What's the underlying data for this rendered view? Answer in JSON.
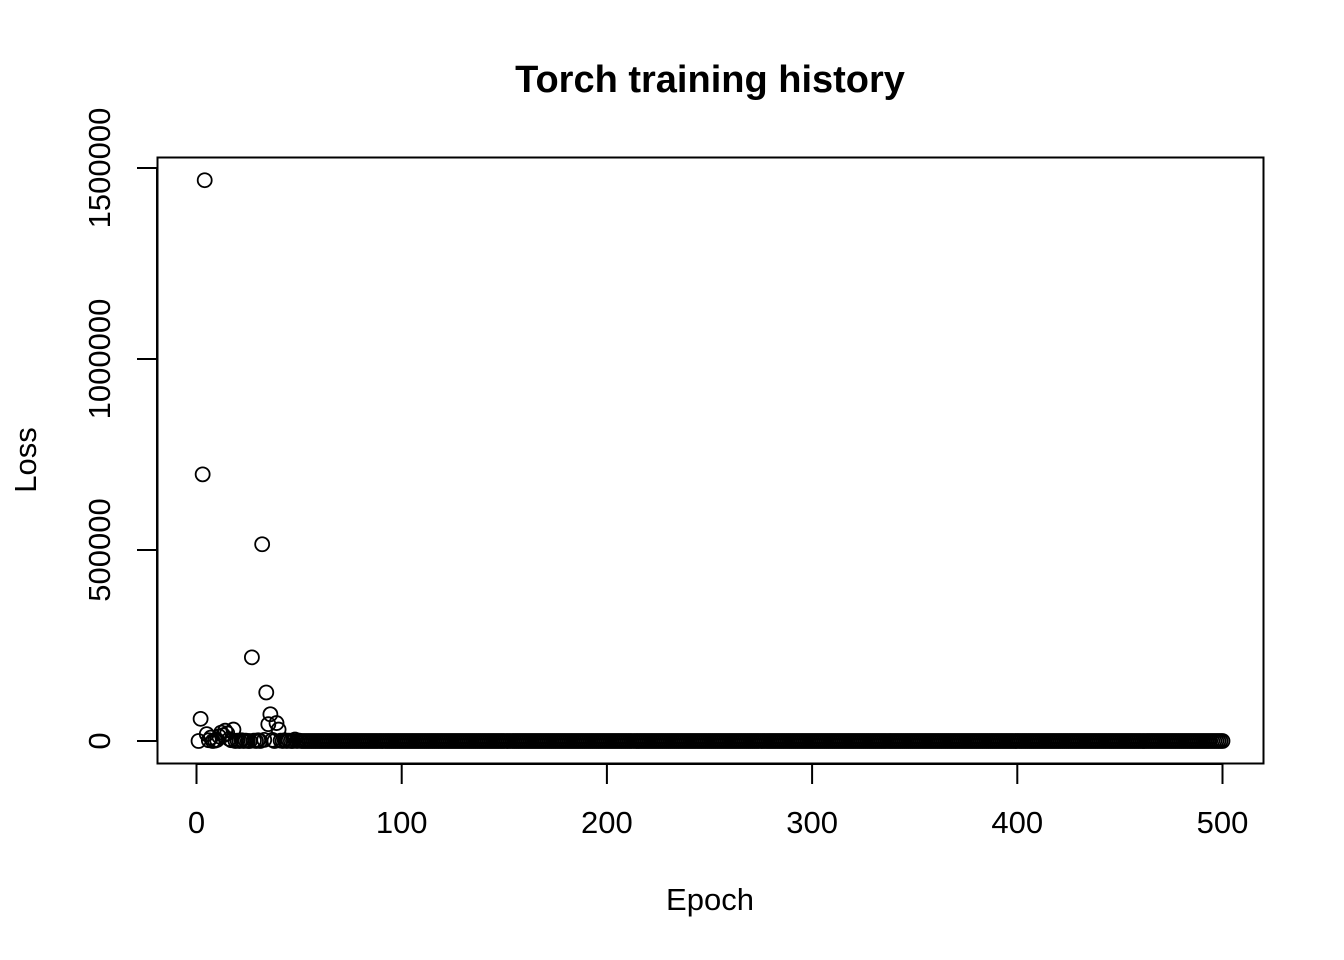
{
  "chart_data": {
    "type": "scatter",
    "title": "Torch training history",
    "xlabel": "Epoch",
    "ylabel": "Loss",
    "xlim": [
      1,
      500
    ],
    "ylim": [
      0,
      1470000
    ],
    "x_ticks": [
      0,
      100,
      200,
      300,
      400,
      500
    ],
    "y_ticks": [
      0,
      500000,
      1000000,
      1500000
    ],
    "x_tick_labels": [
      "0",
      "100",
      "200",
      "300",
      "400",
      "500"
    ],
    "y_tick_labels": [
      "0",
      "500000",
      "1000000",
      "1500000"
    ],
    "grid": false,
    "legend": "none",
    "marker": "open-circle",
    "colors": {
      "marker": "#000000",
      "axis": "#000000",
      "background": "#ffffff"
    },
    "points": [
      [
        1,
        0
      ],
      [
        2,
        58000
      ],
      [
        3,
        698000
      ],
      [
        4,
        1468000
      ],
      [
        5,
        18000
      ],
      [
        6,
        2000
      ],
      [
        7,
        9000
      ],
      [
        8,
        0
      ],
      [
        9,
        1000
      ],
      [
        10,
        3000
      ],
      [
        11,
        12000
      ],
      [
        12,
        22000
      ],
      [
        13,
        15000
      ],
      [
        14,
        27000
      ],
      [
        15,
        20000
      ],
      [
        16,
        5000
      ],
      [
        17,
        2000
      ],
      [
        18,
        30000
      ],
      [
        19,
        0
      ],
      [
        20,
        1000
      ],
      [
        21,
        0
      ],
      [
        22,
        2000
      ],
      [
        23,
        0
      ],
      [
        24,
        1000
      ],
      [
        25,
        0
      ],
      [
        26,
        0
      ],
      [
        27,
        219000
      ],
      [
        28,
        1000
      ],
      [
        29,
        0
      ],
      [
        30,
        2000
      ],
      [
        31,
        0
      ],
      [
        32,
        515000
      ],
      [
        33,
        3000
      ],
      [
        34,
        127000
      ],
      [
        35,
        44000
      ],
      [
        36,
        70000
      ],
      [
        37,
        3000
      ],
      [
        38,
        0
      ],
      [
        39,
        47000
      ],
      [
        40,
        30000
      ],
      [
        41,
        1000
      ],
      [
        42,
        0
      ],
      [
        43,
        2000
      ],
      [
        44,
        0
      ],
      [
        45,
        1000
      ],
      [
        46,
        0
      ],
      [
        47,
        0
      ],
      [
        48,
        4000
      ],
      [
        49,
        0
      ],
      [
        50,
        1000
      ]
    ],
    "tail": {
      "from": 51,
      "to": 500,
      "value": 0
    }
  }
}
